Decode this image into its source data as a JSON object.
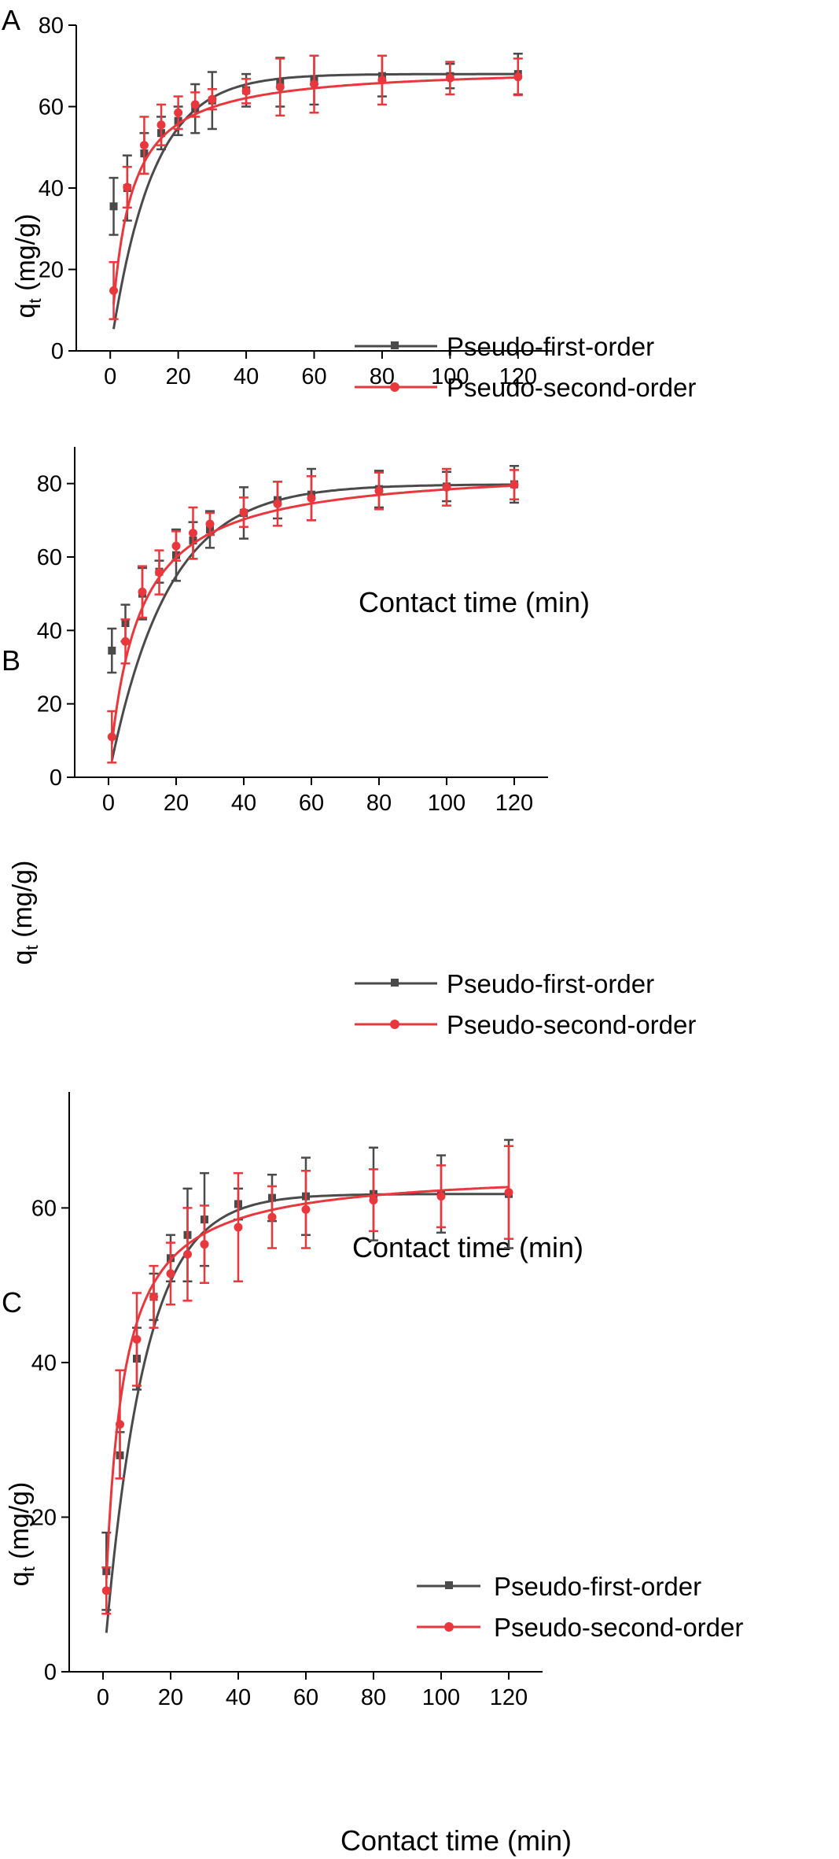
{
  "colors": {
    "pfo": "#4a4a4a",
    "pso": "#e8383d",
    "axis": "#000000",
    "background": "#ffffff"
  },
  "chart_data": [
    {
      "panel": "A",
      "type": "line",
      "title": "",
      "xlabel": "Contact time (min)",
      "ylabel_main": "q",
      "ylabel_sub": "t",
      "ylabel_unit": " (mg/g)",
      "xlim": [
        -10,
        130
      ],
      "ylim": [
        0,
        80
      ],
      "xticks": [
        0,
        20,
        40,
        60,
        80,
        100,
        120
      ],
      "yticks": [
        0,
        20,
        40,
        60,
        80
      ],
      "legend_position": "center-right",
      "series": [
        {
          "name": "Pseudo-first-order",
          "color": "#4a4a4a",
          "marker": "square",
          "x": [
            1,
            5,
            10,
            15,
            20,
            25,
            30,
            40,
            50,
            60,
            80,
            100,
            120
          ],
          "y": [
            35.5,
            40,
            48.5,
            53.5,
            56.5,
            59.5,
            61.5,
            64,
            66,
            66.5,
            67.5,
            67.5,
            68
          ],
          "err": [
            7,
            8,
            5,
            4,
            3.5,
            6,
            7,
            4,
            6,
            6,
            5,
            3,
            5
          ],
          "fit": {
            "model": "pfo",
            "qe": 68.0,
            "k": 0.082
          }
        },
        {
          "name": "Pseudo-second-order",
          "color": "#e8383d",
          "marker": "circle",
          "x": [
            1,
            5,
            10,
            15,
            20,
            25,
            30,
            40,
            50,
            60,
            80,
            100,
            120
          ],
          "y": [
            14.8,
            40.2,
            50.5,
            55.5,
            58.5,
            60.5,
            61.8,
            63.8,
            64.8,
            65.5,
            66.5,
            67,
            67.3
          ],
          "err": [
            7,
            5,
            7,
            5,
            4,
            3,
            2.5,
            3,
            7,
            7,
            6,
            4,
            4.5
          ],
          "fit": {
            "model": "pso",
            "qe": 70.0,
            "k": 0.0028
          }
        }
      ]
    },
    {
      "panel": "B",
      "type": "line",
      "title": "",
      "xlabel": "Contact time (min)",
      "ylabel_main": "q",
      "ylabel_sub": "t",
      "ylabel_unit": " (mg/g)",
      "xlim": [
        -10,
        130
      ],
      "ylim": [
        0,
        90
      ],
      "xticks": [
        0,
        20,
        40,
        60,
        80,
        100,
        120
      ],
      "yticks": [
        0,
        20,
        40,
        60,
        80
      ],
      "legend_position": "center-right",
      "series": [
        {
          "name": "Pseudo-first-order",
          "color": "#4a4a4a",
          "marker": "square",
          "x": [
            1,
            5,
            10,
            15,
            20,
            25,
            30,
            40,
            50,
            60,
            80,
            100,
            120
          ],
          "y": [
            34.5,
            42,
            50,
            56,
            60.5,
            64.5,
            67.5,
            72,
            75.5,
            77,
            78.5,
            79.2,
            79.8
          ],
          "err": [
            6,
            5,
            7,
            3,
            7,
            5,
            5,
            7,
            5,
            7,
            5,
            4,
            5
          ],
          "fit": {
            "model": "pfo",
            "qe": 79.8,
            "k": 0.058
          }
        },
        {
          "name": "Pseudo-second-order",
          "color": "#e8383d",
          "marker": "circle",
          "x": [
            1,
            5,
            10,
            15,
            20,
            25,
            30,
            40,
            50,
            60,
            80,
            100,
            120
          ],
          "y": [
            11,
            37,
            50.5,
            55.8,
            63,
            66.5,
            69,
            72.2,
            74.5,
            76,
            78,
            79,
            79.7
          ],
          "err": [
            7,
            6,
            7,
            6,
            4,
            7,
            3,
            4,
            6,
            6,
            5,
            5,
            4
          ],
          "fit": {
            "model": "pso",
            "qe": 85.0,
            "k": 0.0014
          }
        }
      ]
    },
    {
      "panel": "C",
      "type": "line",
      "title": "",
      "xlabel": "Contact time (min)",
      "ylabel_main": "q",
      "ylabel_sub": "t",
      "ylabel_unit": " (mg/g)",
      "xlim": [
        -10,
        130
      ],
      "ylim": [
        0,
        75
      ],
      "xticks": [
        0,
        20,
        40,
        60,
        80,
        100,
        120
      ],
      "yticks": [
        0,
        20,
        40,
        60
      ],
      "legend_position": "center-right",
      "series": [
        {
          "name": "Pseudo-first-order",
          "color": "#4a4a4a",
          "marker": "square",
          "x": [
            1,
            5,
            10,
            15,
            20,
            25,
            30,
            40,
            50,
            60,
            80,
            100,
            120
          ],
          "y": [
            13,
            28,
            40.5,
            48.5,
            53.5,
            56.5,
            58.5,
            60.5,
            61.3,
            61.5,
            61.8,
            61.8,
            61.8
          ],
          "err": [
            5,
            3,
            4,
            3,
            3,
            6,
            6,
            2,
            3,
            5,
            6,
            5,
            7
          ],
          "fit": {
            "model": "pfo",
            "qe": 61.8,
            "k": 0.085
          }
        },
        {
          "name": "Pseudo-second-order",
          "color": "#e8383d",
          "marker": "circle",
          "x": [
            1,
            5,
            10,
            15,
            20,
            25,
            30,
            40,
            50,
            60,
            80,
            100,
            120
          ],
          "y": [
            10.5,
            32,
            43,
            48.5,
            51.5,
            54,
            55.3,
            57.5,
            58.8,
            59.8,
            61,
            61.5,
            62
          ],
          "err": [
            3,
            7,
            6,
            4,
            4,
            6,
            5,
            7,
            4,
            5,
            4,
            4,
            6
          ],
          "fit": {
            "model": "pso",
            "qe": 65.0,
            "k": 0.0035
          }
        }
      ]
    }
  ]
}
